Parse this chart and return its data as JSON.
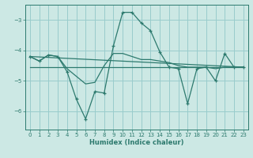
{
  "xlabel": "Humidex (Indice chaleur)",
  "background_color": "#cce8e4",
  "grid_color": "#99cccc",
  "line_color": "#2d7a6e",
  "xlim": [
    -0.5,
    23.5
  ],
  "ylim": [
    -6.6,
    -2.5
  ],
  "yticks": [
    -6,
    -5,
    -4,
    -3
  ],
  "xticks": [
    0,
    1,
    2,
    3,
    4,
    5,
    6,
    7,
    8,
    9,
    10,
    11,
    12,
    13,
    14,
    15,
    16,
    17,
    18,
    19,
    20,
    21,
    22,
    23
  ],
  "line1_x": [
    0,
    1,
    2,
    3,
    4,
    5,
    6,
    7,
    8,
    9,
    10,
    11,
    12,
    13,
    14,
    15,
    16,
    17,
    18,
    19,
    20,
    21,
    22,
    23
  ],
  "line1_y": [
    -4.2,
    -4.35,
    -4.15,
    -4.2,
    -4.7,
    -5.6,
    -6.25,
    -5.35,
    -5.4,
    -3.85,
    -2.75,
    -2.75,
    -3.1,
    -3.35,
    -4.05,
    -4.55,
    -4.6,
    -5.75,
    -4.6,
    -4.55,
    -5.0,
    -4.1,
    -4.55,
    -4.55
  ],
  "line2_x": [
    0,
    1,
    2,
    3,
    4,
    5,
    6,
    7,
    8,
    9,
    10,
    11,
    12,
    13,
    14,
    15,
    16,
    17,
    18,
    19,
    20,
    21,
    22,
    23
  ],
  "line2_y": [
    -4.2,
    -4.35,
    -4.15,
    -4.2,
    -4.6,
    -4.85,
    -5.1,
    -5.05,
    -4.5,
    -4.1,
    -4.1,
    -4.2,
    -4.3,
    -4.3,
    -4.35,
    -4.4,
    -4.5,
    -4.55,
    -4.55,
    -4.55,
    -4.6,
    -4.55,
    -4.55,
    -4.55
  ],
  "line3_x": [
    0,
    23
  ],
  "line3_y": [
    -4.2,
    -4.55
  ],
  "line4_x": [
    0,
    23
  ],
  "line4_y": [
    -4.55,
    -4.55
  ]
}
